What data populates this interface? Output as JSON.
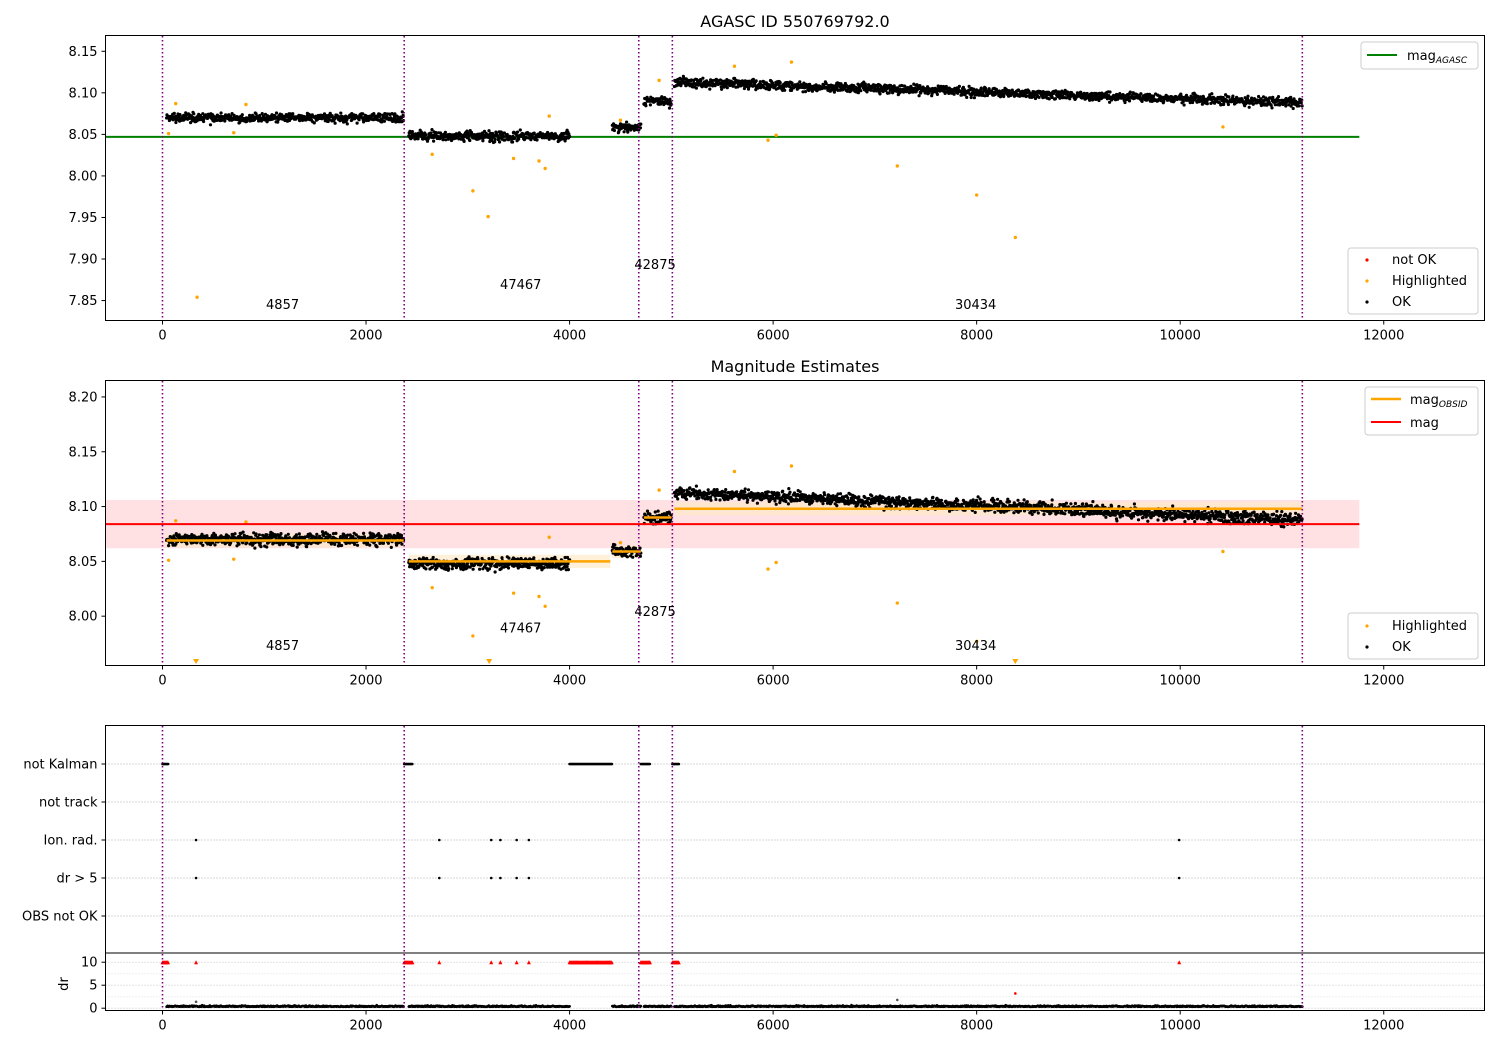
{
  "chart_data": [
    {
      "type": "scatter",
      "title": "AGASC ID 550769792.0",
      "xlim": [
        -560,
        12990
      ],
      "ylim": [
        7.826,
        8.169
      ],
      "xticks": [
        0,
        2000,
        4000,
        6000,
        8000,
        10000,
        12000
      ],
      "yticks": [
        7.85,
        7.9,
        7.95,
        8.0,
        8.05,
        8.1,
        8.15
      ],
      "grid": false,
      "reference_lines": [
        {
          "name": "mag_AGASC",
          "y": 8.047,
          "x_range": [
            -560,
            11760
          ],
          "color": "#008000"
        }
      ],
      "obsid_boundaries": [
        0,
        2375,
        4680,
        5010,
        11200
      ],
      "obsids": [
        {
          "label": "4857",
          "x": 1180,
          "y": 7.84,
          "x_range": [
            40,
            2370
          ],
          "level": 8.07
        },
        {
          "label": "47467",
          "x": 3520,
          "y": 7.864,
          "x_range": [
            2420,
            4000
          ],
          "level": 8.048
        },
        {
          "label": "42875",
          "x": 4840,
          "y": 7.888,
          "x_range": [
            4420,
            4700
          ],
          "level": 8.059
        },
        {
          "label": "",
          "x": null,
          "y": null,
          "x_range": [
            4730,
            5000
          ],
          "level": 8.09
        },
        {
          "label": "30434",
          "x": 7990,
          "y": 7.84,
          "x_range": [
            5030,
            11200
          ],
          "level": 8.1
        }
      ],
      "highlighted_points": [
        [
          60,
          8.051
        ],
        [
          130,
          8.087
        ],
        [
          340,
          7.854
        ],
        [
          700,
          8.052
        ],
        [
          820,
          8.086
        ],
        [
          2650,
          8.026
        ],
        [
          3050,
          7.982
        ],
        [
          3200,
          7.951
        ],
        [
          3450,
          8.021
        ],
        [
          3700,
          8.018
        ],
        [
          3760,
          8.009
        ],
        [
          3800,
          8.072
        ],
        [
          4500,
          8.067
        ],
        [
          4880,
          8.115
        ],
        [
          5950,
          8.043
        ],
        [
          6030,
          8.049
        ],
        [
          5620,
          8.132
        ],
        [
          6180,
          8.137
        ],
        [
          7220,
          8.012
        ],
        [
          8000,
          7.977
        ],
        [
          8380,
          7.926
        ],
        [
          10420,
          8.059
        ]
      ],
      "legend": {
        "position": "lower-right",
        "entries": [
          "not OK",
          "Highlighted",
          "OK"
        ]
      },
      "legend_upper": {
        "position": "upper-right",
        "entries": [
          "mag_AGASC"
        ]
      }
    },
    {
      "type": "scatter",
      "title": "Magnitude Estimates",
      "xlim": [
        -560,
        12990
      ],
      "ylim": [
        7.955,
        8.215
      ],
      "xticks": [
        0,
        2000,
        4000,
        6000,
        8000,
        10000,
        12000
      ],
      "yticks": [
        8.0,
        8.05,
        8.1,
        8.15,
        8.2
      ],
      "grid": false,
      "mag": {
        "value": 8.084,
        "band": [
          8.062,
          8.106
        ],
        "x_range": [
          -560,
          11760
        ],
        "color": "#ff0000"
      },
      "mag_obsid": [
        {
          "x_range": [
            40,
            2370
          ],
          "value": 8.069
        },
        {
          "x_range": [
            2420,
            4400
          ],
          "value": 8.05
        },
        {
          "x_range": [
            4420,
            4700
          ],
          "value": 8.059
        },
        {
          "x_range": [
            4730,
            5000
          ],
          "value": 8.09
        },
        {
          "x_range": [
            5030,
            11200
          ],
          "value": 8.098
        }
      ],
      "obsid_labels": [
        {
          "label": "4857",
          "x": 1180,
          "y": 7.969
        },
        {
          "label": "47467",
          "x": 3520,
          "y": 7.985
        },
        {
          "label": "42875",
          "x": 4840,
          "y": 8.0
        },
        {
          "label": "30434",
          "x": 7990,
          "y": 7.969
        }
      ],
      "below_range_markers": [
        330,
        3210,
        8380
      ],
      "legend": {
        "position": "lower-right",
        "entries": [
          "Highlighted",
          "OK"
        ]
      },
      "legend_upper": {
        "position": "upper-right",
        "entries": [
          "mag_OBSID",
          "mag"
        ]
      }
    },
    {
      "type": "scatter",
      "title": "",
      "xlim": [
        -560,
        12990
      ],
      "xticks": [
        0,
        2000,
        4000,
        6000,
        8000,
        10000,
        12000
      ],
      "flag_rows": [
        "not Kalman",
        "not track",
        "Ion. rad.",
        "dr > 5",
        "OBS not OK"
      ],
      "flag_points": {
        "not Kalman": [
          [
            0,
            60
          ],
          [
            2375,
            2460
          ],
          [
            4000,
            4420
          ],
          [
            4700,
            4790
          ],
          [
            5010,
            5080
          ]
        ],
        "not track": [],
        "Ion. rad.": [
          330,
          2720,
          3230,
          3320,
          3480,
          3600,
          9990
        ],
        "dr > 5": [
          330,
          2720,
          3230,
          3320,
          3480,
          3600,
          9990
        ],
        "OBS not OK": []
      },
      "dr": {
        "ylabel": "dr",
        "ylim": [
          -0.5,
          12
        ],
        "yticks": [
          0,
          5,
          10
        ],
        "clipped_at": 10,
        "clipped_ranges": [
          [
            0,
            60
          ],
          [
            2375,
            2460
          ],
          [
            4000,
            4420
          ],
          [
            4700,
            4790
          ],
          [
            5010,
            5080
          ]
        ],
        "clipped_points": [
          330,
          2720,
          3230,
          3320,
          3480,
          3600,
          9990
        ],
        "outliers": [
          [
            330,
            1.4
          ],
          [
            7220,
            1.8
          ],
          [
            8380,
            3.2
          ]
        ],
        "baseline": 0.3
      }
    }
  ],
  "labels": {
    "legend_mag_agasc_base": "mag",
    "legend_mag_agasc_sub": "AGASC",
    "legend_not_ok": "not OK",
    "legend_highlighted": "Highlighted",
    "legend_ok": "OK",
    "legend_mag_obsid_base": "mag",
    "legend_mag_obsid_sub": "OBSID",
    "legend_mag": "mag",
    "dr_label": "dr"
  },
  "colors": {
    "ok": "#000000",
    "highlighted": "#ffa500",
    "not_ok": "#ff0000",
    "agasc_line": "#008000",
    "mag_line": "#ff0000",
    "mag_band": "#ffe0e3",
    "obsid_line": "#ffa500",
    "obsid_band": "#fde9c9",
    "boundary": "#800080"
  }
}
